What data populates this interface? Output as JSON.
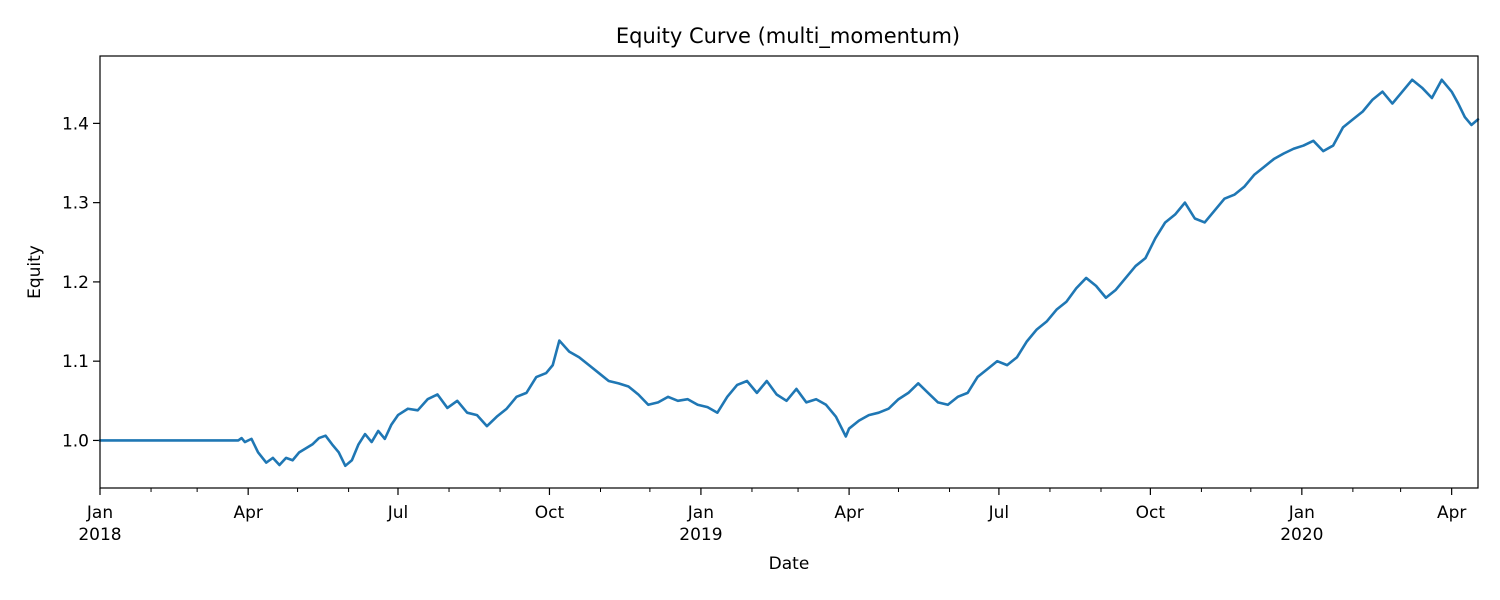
{
  "chart_data": {
    "type": "line",
    "title": "Equity Curve (multi_momentum)",
    "xlabel": "Date",
    "ylabel": "Equity",
    "xlim": [
      "2018-01-01",
      "2020-04-17"
    ],
    "ylim": [
      0.94,
      1.485
    ],
    "grid": false,
    "legend": "none",
    "line_color": "#1f77b4",
    "x_major_ticks": [
      {
        "date": "2018-01-01",
        "label": "Jan",
        "sublabel": "2018"
      },
      {
        "date": "2018-04-01",
        "label": "Apr",
        "sublabel": ""
      },
      {
        "date": "2018-07-01",
        "label": "Jul",
        "sublabel": ""
      },
      {
        "date": "2018-10-01",
        "label": "Oct",
        "sublabel": ""
      },
      {
        "date": "2019-01-01",
        "label": "Jan",
        "sublabel": "2019"
      },
      {
        "date": "2019-04-01",
        "label": "Apr",
        "sublabel": ""
      },
      {
        "date": "2019-07-01",
        "label": "Jul",
        "sublabel": ""
      },
      {
        "date": "2019-10-01",
        "label": "Oct",
        "sublabel": ""
      },
      {
        "date": "2020-01-01",
        "label": "Jan",
        "sublabel": "2020"
      },
      {
        "date": "2020-04-01",
        "label": "Apr",
        "sublabel": ""
      }
    ],
    "y_ticks": [
      {
        "value": 1.0,
        "label": "1.0"
      },
      {
        "value": 1.1,
        "label": "1.1"
      },
      {
        "value": 1.2,
        "label": "1.2"
      },
      {
        "value": 1.3,
        "label": "1.3"
      },
      {
        "value": 1.4,
        "label": "1.4"
      }
    ],
    "series": [
      {
        "x": [
          "2018-01-01",
          "2018-03-26",
          "2018-03-28",
          "2018-03-30",
          "2018-04-03",
          "2018-04-07",
          "2018-04-12",
          "2018-04-16",
          "2018-04-20",
          "2018-04-24",
          "2018-04-28",
          "2018-05-02",
          "2018-05-06",
          "2018-05-10",
          "2018-05-14",
          "2018-05-18",
          "2018-05-22",
          "2018-05-26",
          "2018-05-30",
          "2018-06-03",
          "2018-06-07",
          "2018-06-11",
          "2018-06-15",
          "2018-06-19",
          "2018-06-23",
          "2018-06-27",
          "2018-07-01",
          "2018-07-07",
          "2018-07-13",
          "2018-07-19",
          "2018-07-25",
          "2018-07-31",
          "2018-08-06",
          "2018-08-12",
          "2018-08-18",
          "2018-08-24",
          "2018-08-30",
          "2018-09-05",
          "2018-09-11",
          "2018-09-17",
          "2018-09-23",
          "2018-09-29",
          "2018-10-03",
          "2018-10-07",
          "2018-10-13",
          "2018-10-19",
          "2018-10-25",
          "2018-10-31",
          "2018-11-06",
          "2018-11-12",
          "2018-11-18",
          "2018-11-24",
          "2018-11-30",
          "2018-12-06",
          "2018-12-12",
          "2018-12-18",
          "2018-12-24",
          "2018-12-30",
          "2019-01-05",
          "2019-01-11",
          "2019-01-17",
          "2019-01-23",
          "2019-01-29",
          "2019-02-04",
          "2019-02-10",
          "2019-02-16",
          "2019-02-22",
          "2019-02-28",
          "2019-03-06",
          "2019-03-12",
          "2019-03-18",
          "2019-03-24",
          "2019-03-30",
          "2019-04-01",
          "2019-04-07",
          "2019-04-13",
          "2019-04-19",
          "2019-04-25",
          "2019-05-01",
          "2019-05-07",
          "2019-05-13",
          "2019-05-19",
          "2019-05-25",
          "2019-05-31",
          "2019-06-06",
          "2019-06-12",
          "2019-06-18",
          "2019-06-24",
          "2019-06-30",
          "2019-07-06",
          "2019-07-12",
          "2019-07-18",
          "2019-07-24",
          "2019-07-30",
          "2019-08-05",
          "2019-08-11",
          "2019-08-17",
          "2019-08-23",
          "2019-08-29",
          "2019-09-04",
          "2019-09-10",
          "2019-09-16",
          "2019-09-22",
          "2019-09-28",
          "2019-10-04",
          "2019-10-10",
          "2019-10-16",
          "2019-10-22",
          "2019-10-28",
          "2019-11-03",
          "2019-11-09",
          "2019-11-15",
          "2019-11-21",
          "2019-11-27",
          "2019-12-03",
          "2019-12-09",
          "2019-12-15",
          "2019-12-21",
          "2019-12-27",
          "2020-01-02",
          "2020-01-08",
          "2020-01-14",
          "2020-01-20",
          "2020-01-26",
          "2020-02-01",
          "2020-02-07",
          "2020-02-13",
          "2020-02-19",
          "2020-02-25",
          "2020-03-02",
          "2020-03-08",
          "2020-03-14",
          "2020-03-20",
          "2020-03-26",
          "2020-04-01",
          "2020-04-05",
          "2020-04-09",
          "2020-04-13",
          "2020-04-17"
        ],
        "y": [
          1.0,
          1.0,
          1.003,
          0.998,
          1.002,
          0.985,
          0.972,
          0.978,
          0.969,
          0.978,
          0.975,
          0.985,
          0.99,
          0.995,
          1.003,
          1.006,
          0.995,
          0.985,
          0.968,
          0.975,
          0.995,
          1.008,
          0.998,
          1.012,
          1.002,
          1.02,
          1.032,
          1.04,
          1.038,
          1.052,
          1.058,
          1.041,
          1.05,
          1.035,
          1.032,
          1.018,
          1.03,
          1.04,
          1.055,
          1.06,
          1.08,
          1.085,
          1.095,
          1.126,
          1.112,
          1.105,
          1.095,
          1.085,
          1.075,
          1.072,
          1.068,
          1.058,
          1.045,
          1.048,
          1.055,
          1.05,
          1.052,
          1.045,
          1.042,
          1.035,
          1.055,
          1.07,
          1.075,
          1.06,
          1.075,
          1.058,
          1.05,
          1.065,
          1.048,
          1.052,
          1.045,
          1.03,
          1.005,
          1.015,
          1.025,
          1.032,
          1.035,
          1.04,
          1.052,
          1.06,
          1.072,
          1.06,
          1.048,
          1.045,
          1.055,
          1.06,
          1.08,
          1.09,
          1.1,
          1.095,
          1.105,
          1.125,
          1.14,
          1.15,
          1.165,
          1.175,
          1.192,
          1.205,
          1.195,
          1.18,
          1.19,
          1.205,
          1.22,
          1.23,
          1.255,
          1.275,
          1.285,
          1.3,
          1.28,
          1.275,
          1.29,
          1.305,
          1.31,
          1.32,
          1.335,
          1.345,
          1.355,
          1.362,
          1.368,
          1.372,
          1.378,
          1.365,
          1.372,
          1.395,
          1.405,
          1.415,
          1.43,
          1.44,
          1.425,
          1.44,
          1.455,
          1.445,
          1.432,
          1.455,
          1.44,
          1.425,
          1.408,
          1.398,
          1.405
        ]
      }
    ]
  }
}
